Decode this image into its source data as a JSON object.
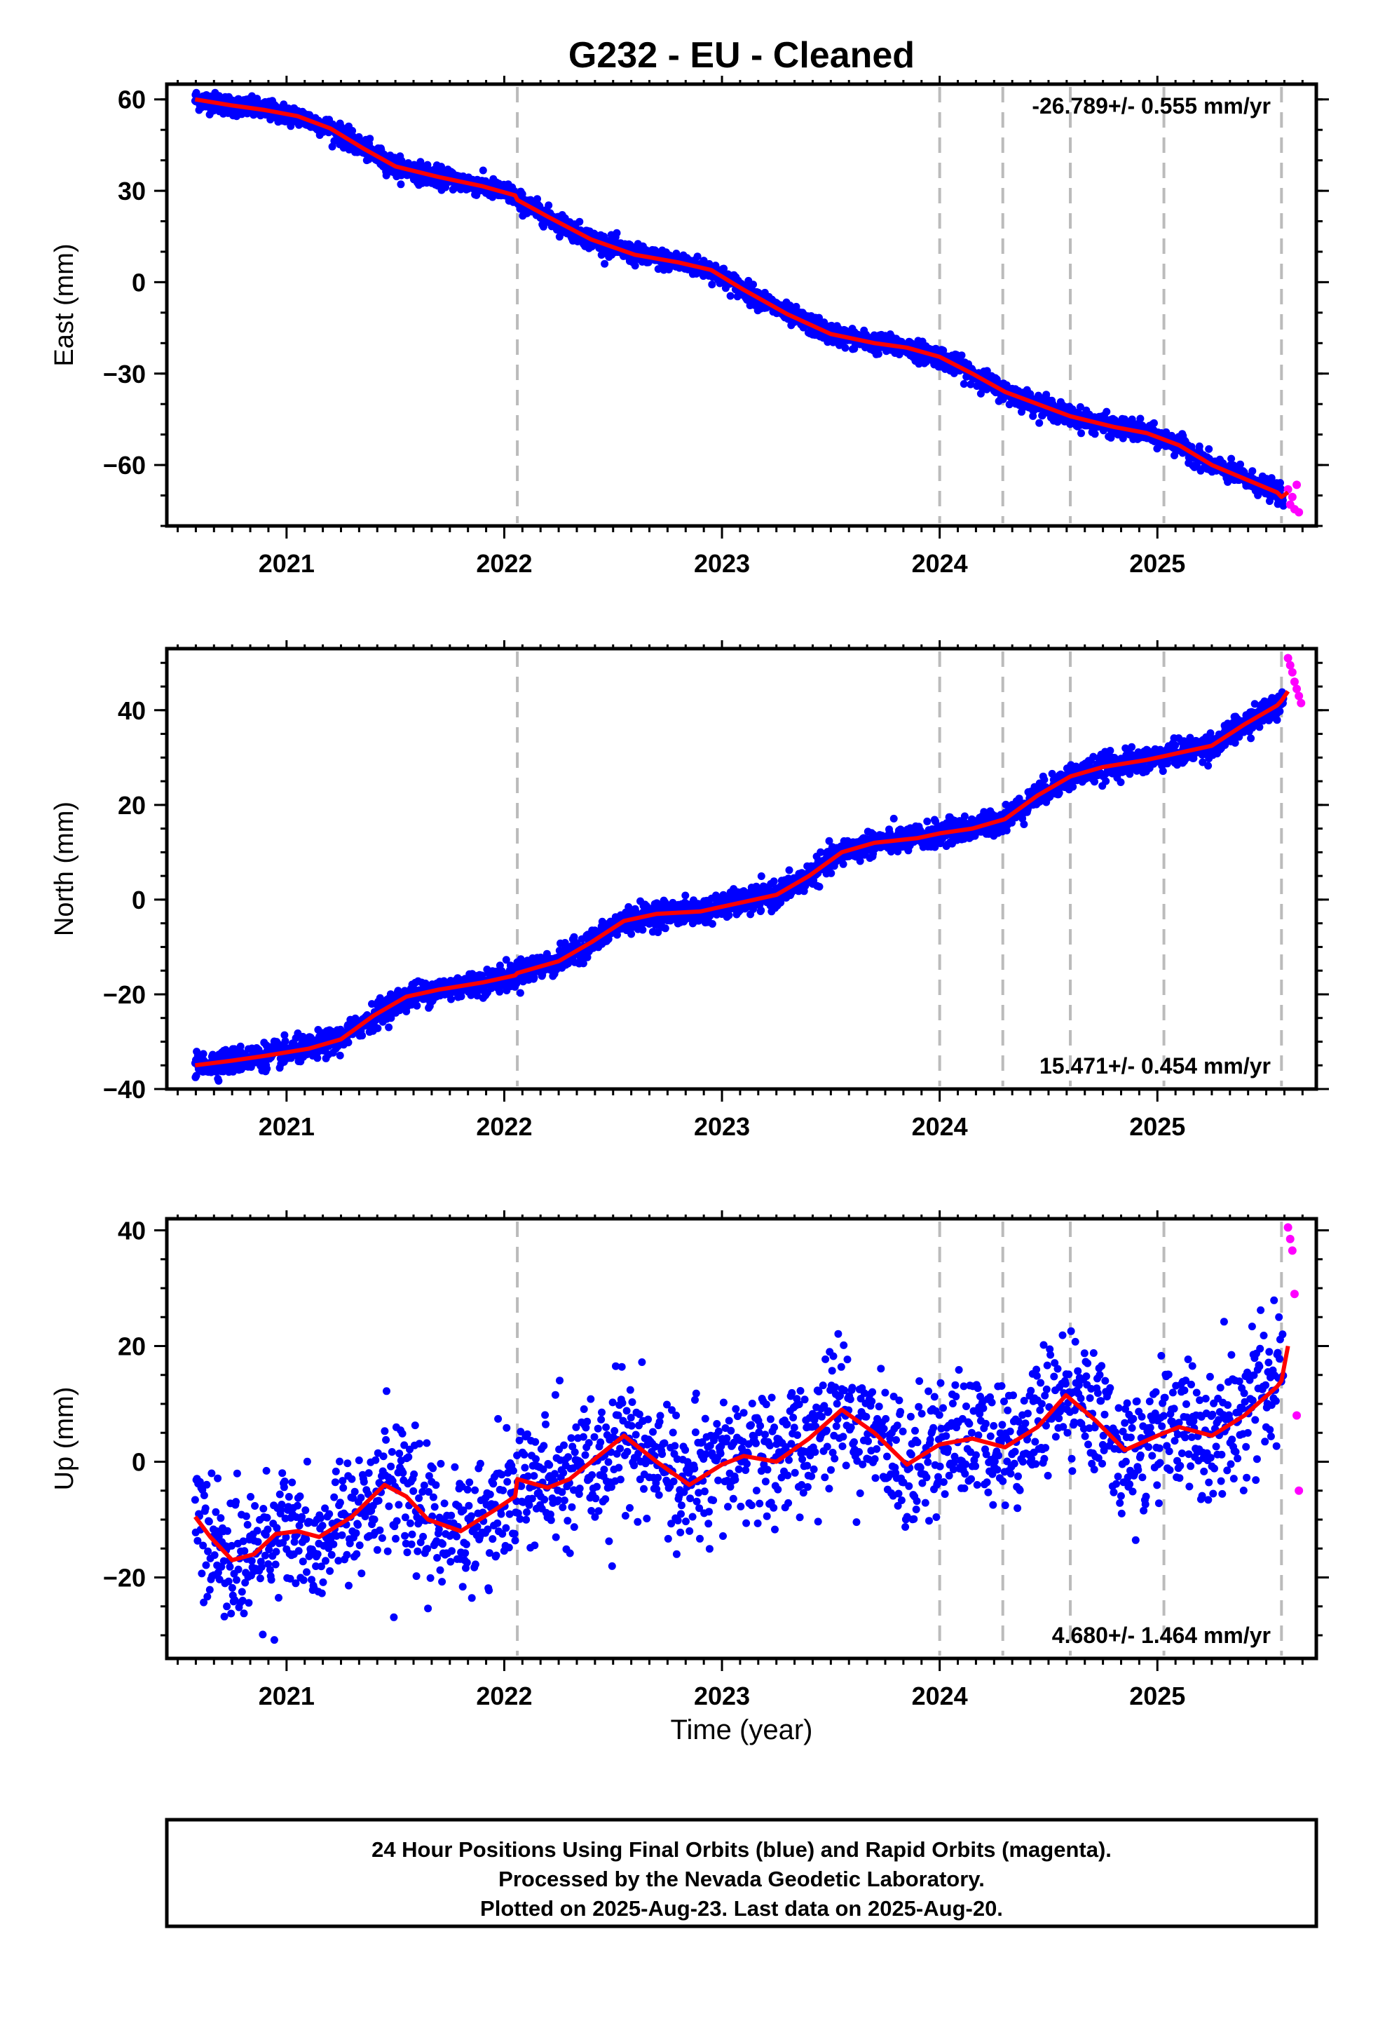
{
  "title": "G232  - EU - Cleaned",
  "x_label": "Time (year)",
  "colors": {
    "final_orbits": "#0000ff",
    "rapid_orbits": "#ff00ff",
    "model_fit": "#ff0000",
    "event_lines": "#bbbbbb",
    "frame": "#000000"
  },
  "footer": {
    "line1": "24 Hour Positions Using Final Orbits (blue) and Rapid Orbits (magenta).",
    "line2": "Processed by the Nevada Geodetic Laboratory.",
    "line3": "Plotted on 2025-Aug-23. Last data on 2025-Aug-20."
  },
  "chart_data": [
    {
      "type": "scatter",
      "component": "East",
      "ylabel": "East (mm)",
      "rate_label": "-26.789+/- 0.555 mm/yr",
      "rate_position": "top-right",
      "xlim": [
        2020.45,
        2025.73
      ],
      "ylim": [
        -80,
        65
      ],
      "xticks": [
        "2021",
        "2022",
        "2023",
        "2024",
        "2025"
      ],
      "yticks": [
        "60",
        "30",
        "0",
        "−30",
        "−60"
      ],
      "ytick_values": [
        60,
        30,
        0,
        -30,
        -60
      ],
      "event_lines": [
        2022.06,
        2024.0,
        2024.29,
        2024.6,
        2025.03,
        2025.57
      ],
      "grid": false,
      "fit_curve": {
        "x": [
          2020.58,
          2020.75,
          2020.9,
          2021.05,
          2021.2,
          2021.35,
          2021.5,
          2021.7,
          2021.9,
          2022.05,
          2022.06,
          2022.2,
          2022.4,
          2022.6,
          2022.8,
          2022.95,
          2023.1,
          2023.3,
          2023.5,
          2023.7,
          2023.85,
          2024.0,
          2024.15,
          2024.3,
          2024.45,
          2024.6,
          2024.8,
          2024.95,
          2025.1,
          2025.25,
          2025.4,
          2025.55,
          2025.57,
          2025.6
        ],
        "y": [
          60,
          58,
          56.5,
          54.5,
          50.5,
          44,
          38,
          34.5,
          31.5,
          28.5,
          27,
          21.5,
          14,
          9,
          6.5,
          4,
          -2.5,
          -10.5,
          -17,
          -20,
          -21.5,
          -24.5,
          -30,
          -36,
          -40,
          -44,
          -47.5,
          -49.5,
          -53.5,
          -60,
          -64.5,
          -69,
          -70.5,
          -69
        ]
      },
      "noise_mm": 1.6,
      "rapid_points": {
        "x": [
          2025.6,
          2025.61,
          2025.62,
          2025.63,
          2025.64,
          2025.65
        ],
        "y": [
          -68,
          -73,
          -70.5,
          -74.5,
          -66.5,
          -75.5
        ]
      }
    },
    {
      "type": "scatter",
      "component": "North",
      "ylabel": "North (mm)",
      "rate_label": "15.471+/- 0.454 mm/yr",
      "rate_position": "bottom-right",
      "xlim": [
        2020.45,
        2025.73
      ],
      "ylim": [
        -40,
        53
      ],
      "xticks": [
        "2021",
        "2022",
        "2023",
        "2024",
        "2025"
      ],
      "yticks": [
        "40",
        "20",
        "0",
        "−20",
        "−40"
      ],
      "ytick_values": [
        40,
        20,
        0,
        -20,
        -40
      ],
      "event_lines": [
        2022.06,
        2024.0,
        2024.29,
        2024.6,
        2025.03,
        2025.57
      ],
      "grid": false,
      "fit_curve": {
        "x": [
          2020.58,
          2020.75,
          2020.9,
          2021.1,
          2021.25,
          2021.4,
          2021.55,
          2021.7,
          2021.9,
          2022.05,
          2022.06,
          2022.25,
          2022.4,
          2022.55,
          2022.7,
          2022.9,
          2023.1,
          2023.25,
          2023.4,
          2023.55,
          2023.7,
          2023.9,
          2024.0,
          2024.15,
          2024.3,
          2024.45,
          2024.6,
          2024.75,
          2024.95,
          2025.1,
          2025.25,
          2025.4,
          2025.55,
          2025.57,
          2025.6
        ],
        "y": [
          -35,
          -34,
          -33,
          -31.5,
          -29.5,
          -24.5,
          -20.5,
          -19,
          -17.5,
          -16,
          -15.5,
          -13,
          -9,
          -4.5,
          -3,
          -2.5,
          -0.5,
          1,
          5,
          10,
          12,
          13,
          14,
          15,
          17,
          22,
          26,
          28,
          29.5,
          31,
          32.5,
          37,
          41,
          42,
          44
        ]
      },
      "noise_mm": 1.3,
      "rapid_points": {
        "x": [
          2025.6,
          2025.61,
          2025.62,
          2025.63,
          2025.64,
          2025.65,
          2025.66
        ],
        "y": [
          51,
          49.5,
          48,
          46,
          44.5,
          43,
          41.5
        ]
      }
    },
    {
      "type": "scatter",
      "component": "Up",
      "ylabel": "Up (mm)",
      "rate_label": "4.680+/- 1.464 mm/yr",
      "rate_position": "bottom-right",
      "xlim": [
        2020.45,
        2025.73
      ],
      "ylim": [
        -34,
        42
      ],
      "xticks": [
        "2021",
        "2022",
        "2023",
        "2024",
        "2025"
      ],
      "yticks": [
        "40",
        "20",
        "0",
        "−20"
      ],
      "ytick_values": [
        40,
        20,
        0,
        -20
      ],
      "event_lines": [
        2022.06,
        2024.0,
        2024.29,
        2024.6,
        2025.03,
        2025.57
      ],
      "grid": false,
      "fit_curve": {
        "x": [
          2020.58,
          2020.65,
          2020.75,
          2020.85,
          2020.95,
          2021.05,
          2021.15,
          2021.3,
          2021.45,
          2021.55,
          2021.65,
          2021.8,
          2021.95,
          2022.05,
          2022.06,
          2022.2,
          2022.3,
          2022.4,
          2022.55,
          2022.7,
          2022.85,
          2023.0,
          2023.1,
          2023.25,
          2023.4,
          2023.55,
          2023.7,
          2023.85,
          2024.0,
          2024.15,
          2024.3,
          2024.45,
          2024.58,
          2024.72,
          2024.85,
          2025.0,
          2025.1,
          2025.25,
          2025.4,
          2025.55,
          2025.57,
          2025.6
        ],
        "y": [
          -9.5,
          -13,
          -17,
          -16,
          -12.5,
          -12,
          -13,
          -9.5,
          -4,
          -6,
          -10,
          -12,
          -8.5,
          -6,
          -3,
          -4.5,
          -3,
          0,
          4.5,
          0,
          -4,
          -0.5,
          1,
          0,
          4,
          9,
          5,
          -0.5,
          3,
          4,
          2.5,
          6,
          11.5,
          7,
          2,
          4.5,
          6,
          4.5,
          8,
          13,
          14,
          20
        ]
      },
      "noise_mm": 5.5,
      "rapid_points": {
        "x": [
          2025.6,
          2025.61,
          2025.62,
          2025.63,
          2025.64,
          2025.65
        ],
        "y": [
          40.5,
          38.5,
          36.5,
          29,
          8,
          -5
        ]
      }
    }
  ]
}
